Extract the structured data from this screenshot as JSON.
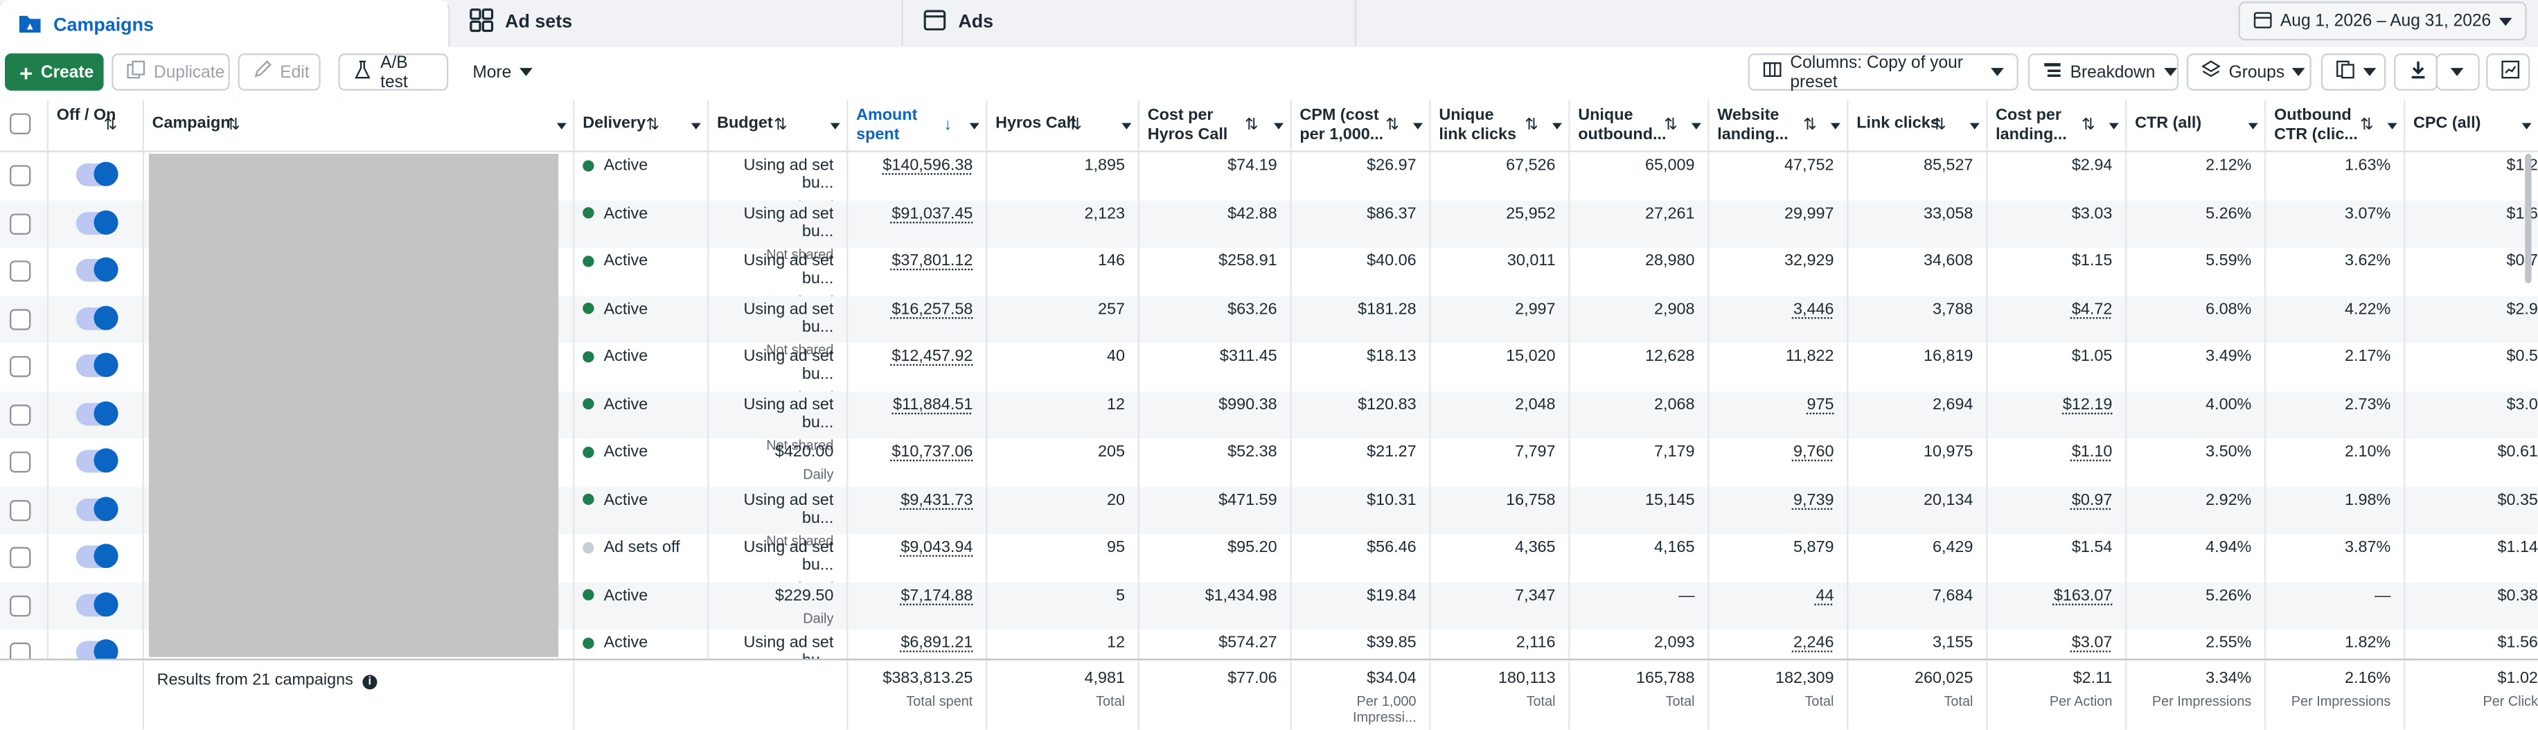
{
  "tabs": [
    {
      "label": "Campaigns",
      "icon": "folder-icon",
      "active": true
    },
    {
      "label": "Ad sets",
      "icon": "grid-icon",
      "active": false
    },
    {
      "label": "Ads",
      "icon": "ad-icon",
      "active": false
    }
  ],
  "date_range": "Aug 1, 2026 – Aug 31, 2026",
  "toolbar": {
    "create": "Create",
    "duplicate": "Duplicate",
    "edit": "Edit",
    "ab_test": "A/B test",
    "more": "More",
    "columns": "Columns: Copy of your preset",
    "breakdown": "Breakdown",
    "groups": "Groups"
  },
  "columns": {
    "offon": "Off / On",
    "campaign": "Campaign",
    "delivery": "Delivery",
    "budget": "Budget",
    "amount_spent": "Amount spent",
    "hyros_call": "Hyros Call",
    "cost_per_hyros": "Cost per Hyros Call",
    "cpm": "CPM (cost per 1,000...",
    "unique_link": "Unique link clicks",
    "unique_outbound": "Unique outbound...",
    "website_landing": "Website landing...",
    "link_clicks": "Link clicks",
    "cost_per_landing": "Cost per landing...",
    "ctr_all": "CTR (all)",
    "outbound_ctr": "Outbound CTR (clic...",
    "cpc_all": "CPC (all)"
  },
  "rows": [
    {
      "delivery": "Active",
      "status_color": "#1e7f4d",
      "budget": "Using ad set bu...",
      "budget_sub": "Not shared",
      "amount": "$140,596.38",
      "hyros": "1,895",
      "cphc": "$74.19",
      "cpm": "$26.97",
      "ulc": "67,526",
      "uoc": "65,009",
      "wl": "47,752",
      "lc": "85,527",
      "cpl": "$2.94",
      "ctr": "2.12%",
      "octr": "1.63%",
      "cpc": "$1.2"
    },
    {
      "delivery": "Active",
      "status_color": "#1e7f4d",
      "budget": "Using ad set bu...",
      "budget_sub": "Not shared",
      "amount": "$91,037.45",
      "hyros": "2,123",
      "cphc": "$42.88",
      "cpm": "$86.37",
      "ulc": "25,952",
      "uoc": "27,261",
      "wl": "29,997",
      "lc": "33,058",
      "cpl": "$3.03",
      "ctr": "5.26%",
      "octr": "3.07%",
      "cpc": "$1.6"
    },
    {
      "delivery": "Active",
      "status_color": "#1e7f4d",
      "budget": "Using ad set bu...",
      "budget_sub": "Not shared",
      "amount": "$37,801.12",
      "hyros": "146",
      "cphc": "$258.91",
      "cpm": "$40.06",
      "ulc": "30,011",
      "uoc": "28,980",
      "wl": "32,929",
      "lc": "34,608",
      "cpl": "$1.15",
      "ctr": "5.59%",
      "octr": "3.62%",
      "cpc": "$0.7"
    },
    {
      "delivery": "Active",
      "status_color": "#1e7f4d",
      "budget": "Using ad set bu...",
      "budget_sub": "Not shared",
      "amount": "$16,257.58",
      "hyros": "257",
      "cphc": "$63.26",
      "cpm": "$181.28",
      "ulc": "2,997",
      "uoc": "2,908",
      "wl": "3,446",
      "lc": "3,788",
      "cpl": "$4.72",
      "ctr": "6.08%",
      "octr": "4.22%",
      "cpc": "$2.9"
    },
    {
      "delivery": "Active",
      "status_color": "#1e7f4d",
      "budget": "Using ad set bu...",
      "budget_sub": "Not shared",
      "amount": "$12,457.92",
      "hyros": "40",
      "cphc": "$311.45",
      "cpm": "$18.13",
      "ulc": "15,020",
      "uoc": "12,628",
      "wl": "11,822",
      "lc": "16,819",
      "cpl": "$1.05",
      "ctr": "3.49%",
      "octr": "2.17%",
      "cpc": "$0.5"
    },
    {
      "delivery": "Active",
      "status_color": "#1e7f4d",
      "budget": "Using ad set bu...",
      "budget_sub": "Not shared",
      "amount": "$11,884.51",
      "hyros": "12",
      "cphc": "$990.38",
      "cpm": "$120.83",
      "ulc": "2,048",
      "uoc": "2,068",
      "wl": "975",
      "lc": "2,694",
      "cpl": "$12.19",
      "ctr": "4.00%",
      "octr": "2.73%",
      "cpc": "$3.0"
    },
    {
      "delivery": "Active",
      "status_color": "#1e7f4d",
      "budget": "$420.00",
      "budget_sub": "Daily",
      "amount": "$10,737.06",
      "hyros": "205",
      "cphc": "$52.38",
      "cpm": "$21.27",
      "ulc": "7,797",
      "uoc": "7,179",
      "wl": "9,760",
      "lc": "10,975",
      "cpl": "$1.10",
      "ctr": "3.50%",
      "octr": "2.10%",
      "cpc": "$0.61"
    },
    {
      "delivery": "Active",
      "status_color": "#1e7f4d",
      "budget": "Using ad set bu...",
      "budget_sub": "Not shared",
      "amount": "$9,431.73",
      "hyros": "20",
      "cphc": "$471.59",
      "cpm": "$10.31",
      "ulc": "16,758",
      "uoc": "15,145",
      "wl": "9,739",
      "lc": "20,134",
      "cpl": "$0.97",
      "ctr": "2.92%",
      "octr": "1.98%",
      "cpc": "$0.35"
    },
    {
      "delivery": "Ad sets off",
      "status_color": "#c9ced6",
      "budget": "Using ad set bu...",
      "budget_sub": "Not shared",
      "amount": "$9,043.94",
      "hyros": "95",
      "cphc": "$95.20",
      "cpm": "$56.46",
      "ulc": "4,365",
      "uoc": "4,165",
      "wl": "5,879",
      "lc": "6,429",
      "cpl": "$1.54",
      "ctr": "4.94%",
      "octr": "3.87%",
      "cpc": "$1.14"
    },
    {
      "delivery": "Active",
      "status_color": "#1e7f4d",
      "budget": "$229.50",
      "budget_sub": "Daily",
      "amount": "$7,174.88",
      "hyros": "5",
      "cphc": "$1,434.98",
      "cpm": "$19.84",
      "ulc": "7,347",
      "uoc": "—",
      "wl": "44",
      "lc": "7,684",
      "cpl": "$163.07",
      "ctr": "5.26%",
      "octr": "—",
      "cpc": "$0.38"
    },
    {
      "delivery": "Active",
      "status_color": "#1e7f4d",
      "budget": "Using ad set bu...",
      "budget_sub": "Not shared",
      "amount": "$6,891.21",
      "hyros": "12",
      "cphc": "$574.27",
      "cpm": "$39.85",
      "ulc": "2,116",
      "uoc": "2,093",
      "wl": "2,246",
      "lc": "3,155",
      "cpl": "$3.07",
      "ctr": "2.55%",
      "octr": "1.82%",
      "cpc": "$1.56"
    }
  ],
  "footer": {
    "results": "Results from 21 campaigns",
    "amount": "$383,813.25",
    "amount_sub": "Total spent",
    "hyros": "4,981",
    "hyros_sub": "Total",
    "cphc": "$77.06",
    "cpm": "$34.04",
    "cpm_sub": "Per 1,000 Impressi...",
    "ulc": "180,113",
    "ulc_sub": "Total",
    "uoc": "165,788",
    "uoc_sub": "Total",
    "wl": "182,309",
    "wl_sub": "Total",
    "lc": "260,025",
    "lc_sub": "Total",
    "cpl": "$2.11",
    "cpl_sub": "Per Action",
    "ctr": "3.34%",
    "ctr_sub": "Per Impressions",
    "octr": "2.16%",
    "octr_sub": "Per Impressions",
    "cpc": "$1.02",
    "cpc_sub": "Per Click"
  }
}
